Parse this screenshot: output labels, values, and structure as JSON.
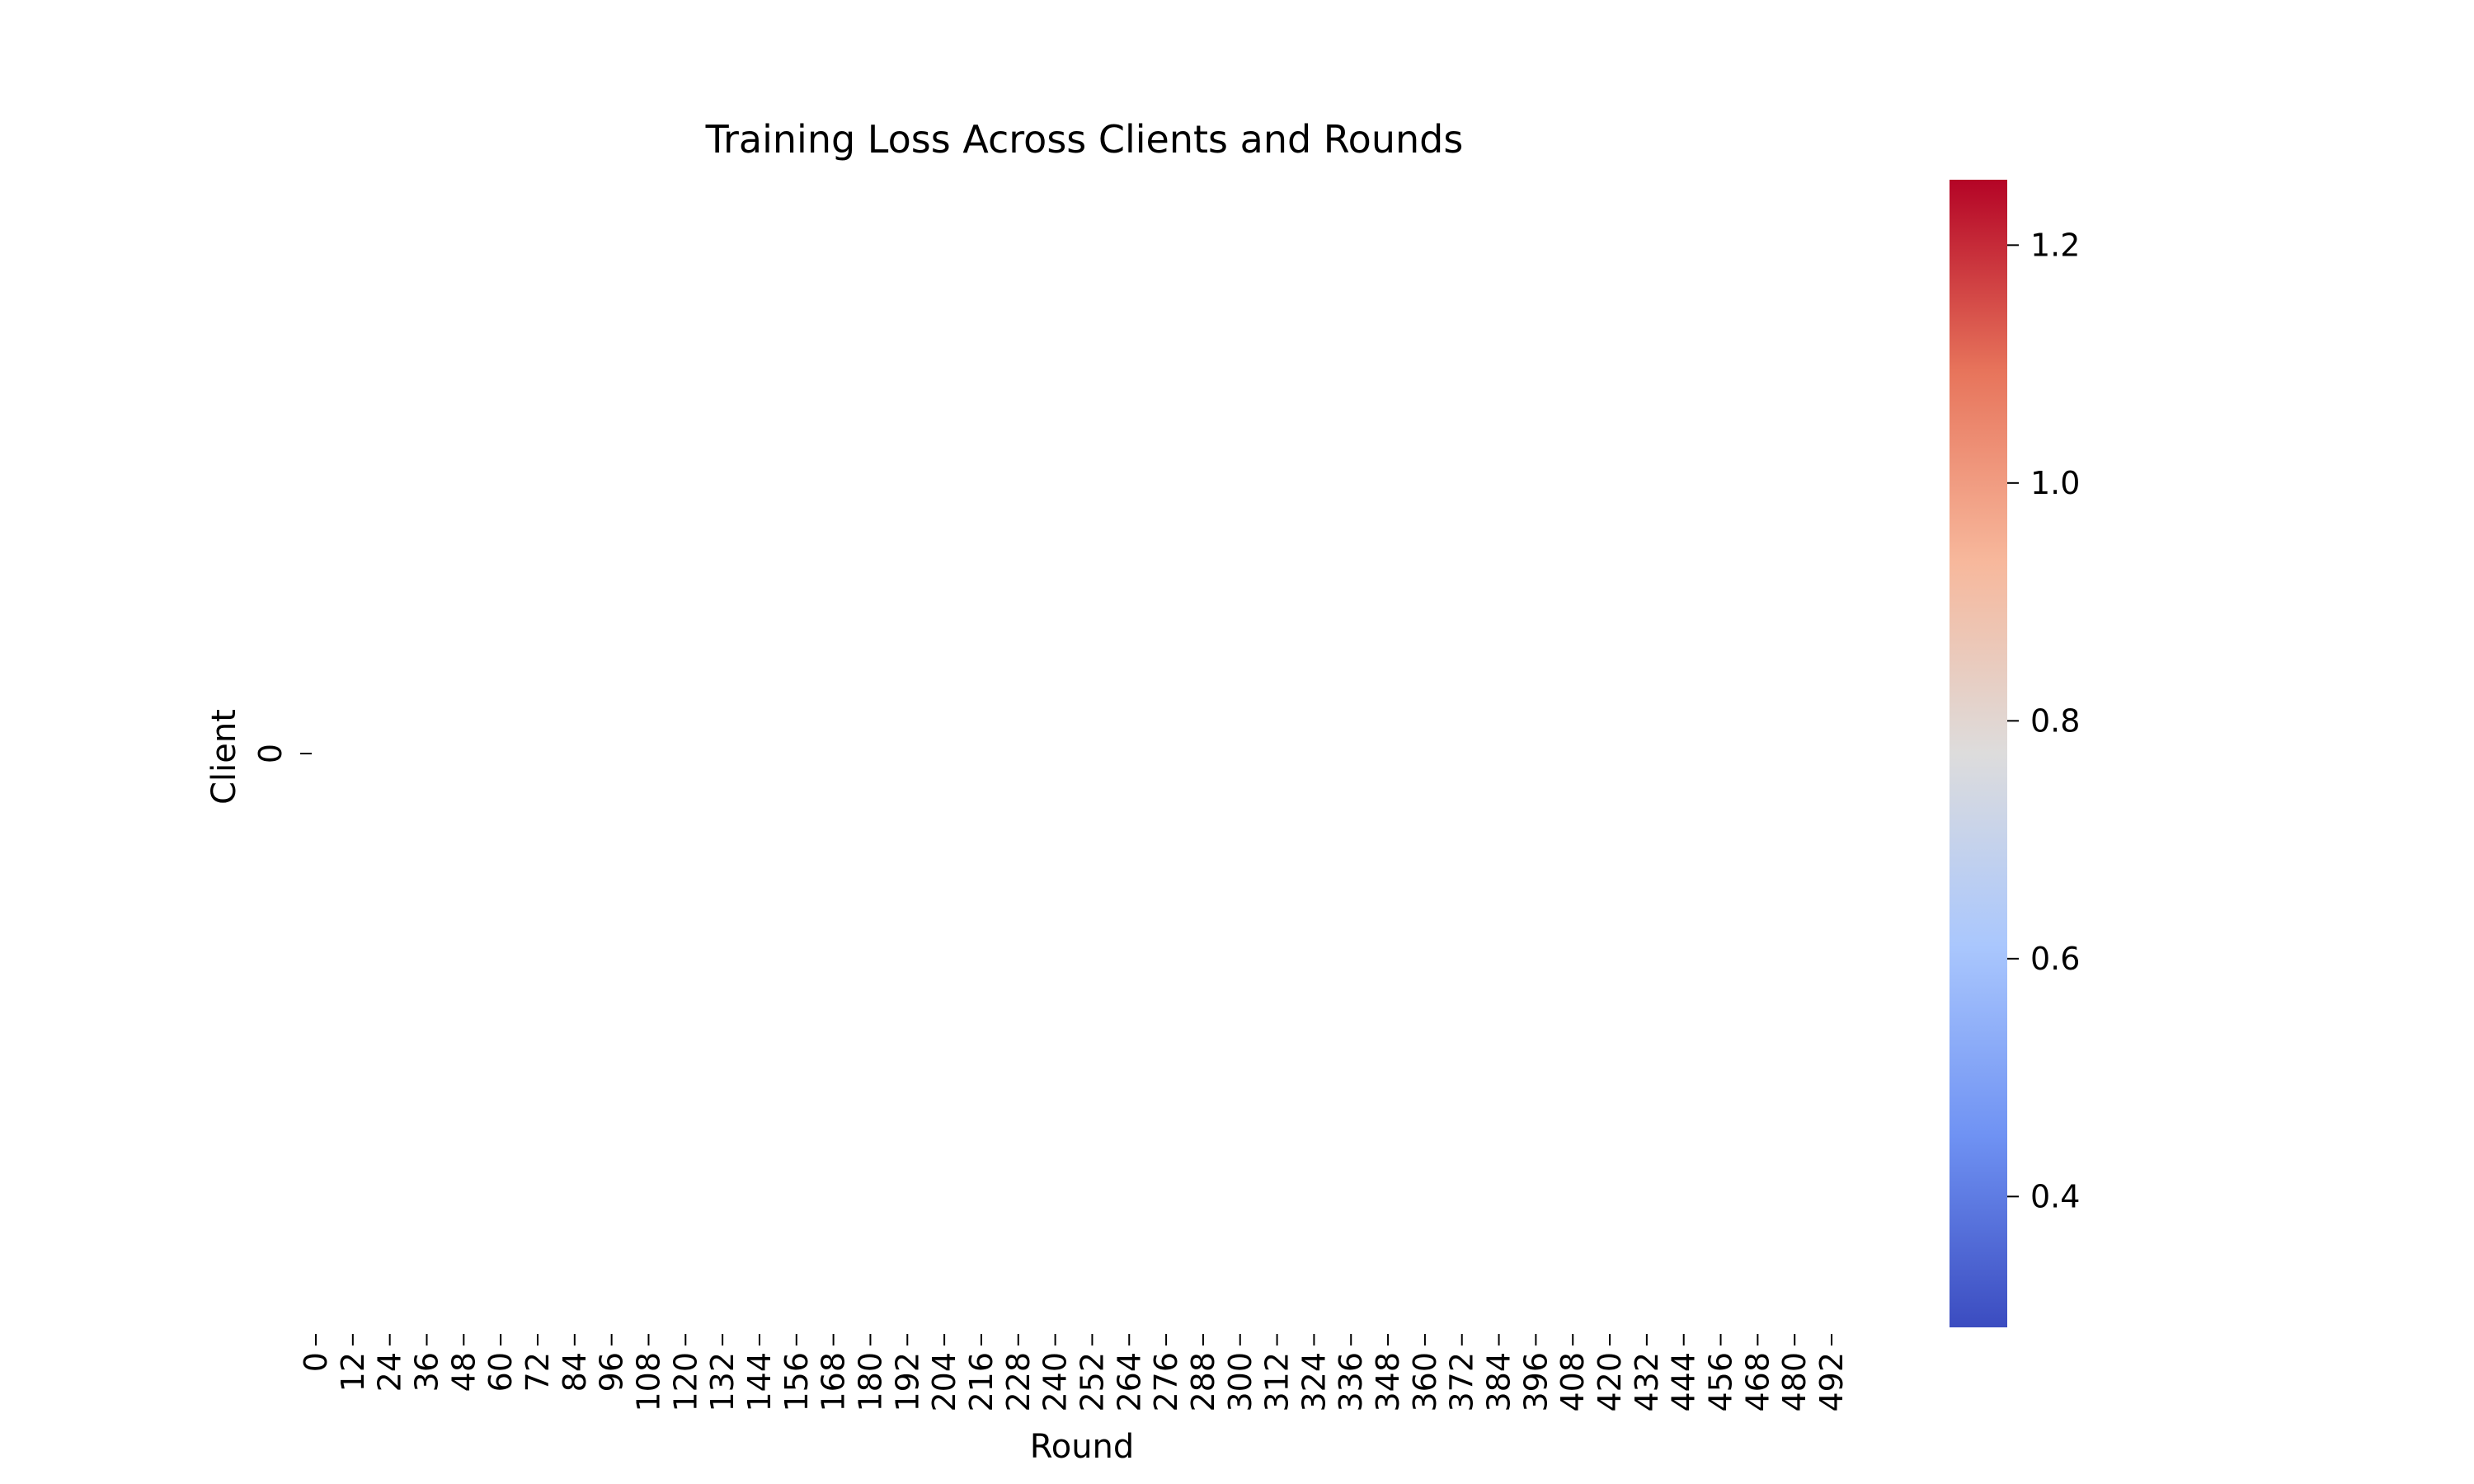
{
  "chart_data": {
    "type": "heatmap",
    "title": "Training Loss Across Clients and Rounds",
    "xlabel": "Round",
    "ylabel": "Client",
    "x_tick_labels": [
      "0",
      "12",
      "24",
      "36",
      "48",
      "60",
      "72",
      "84",
      "96",
      "108",
      "120",
      "132",
      "144",
      "156",
      "168",
      "180",
      "192",
      "204",
      "216",
      "228",
      "240",
      "252",
      "264",
      "276",
      "288",
      "300",
      "312",
      "324",
      "336",
      "348",
      "360",
      "372",
      "384",
      "396",
      "408",
      "420",
      "432",
      "444",
      "456",
      "468",
      "480",
      "492"
    ],
    "y_tick_labels": [
      "0"
    ],
    "x_range": [
      0,
      500
    ],
    "cells_visible": false,
    "colorbar": {
      "colormap": "coolwarm",
      "range": [
        0.29,
        1.255
      ],
      "ticks": [
        "0.4",
        "0.6",
        "0.8",
        "1.0",
        "1.2"
      ],
      "tick_values": [
        0.4,
        0.6,
        0.8,
        1.0,
        1.2
      ],
      "stops": [
        "#3b4cc0",
        "#6f92f3",
        "#aac7fd",
        "#dddcdc",
        "#f7b89c",
        "#e7745b",
        "#b40426"
      ]
    }
  }
}
